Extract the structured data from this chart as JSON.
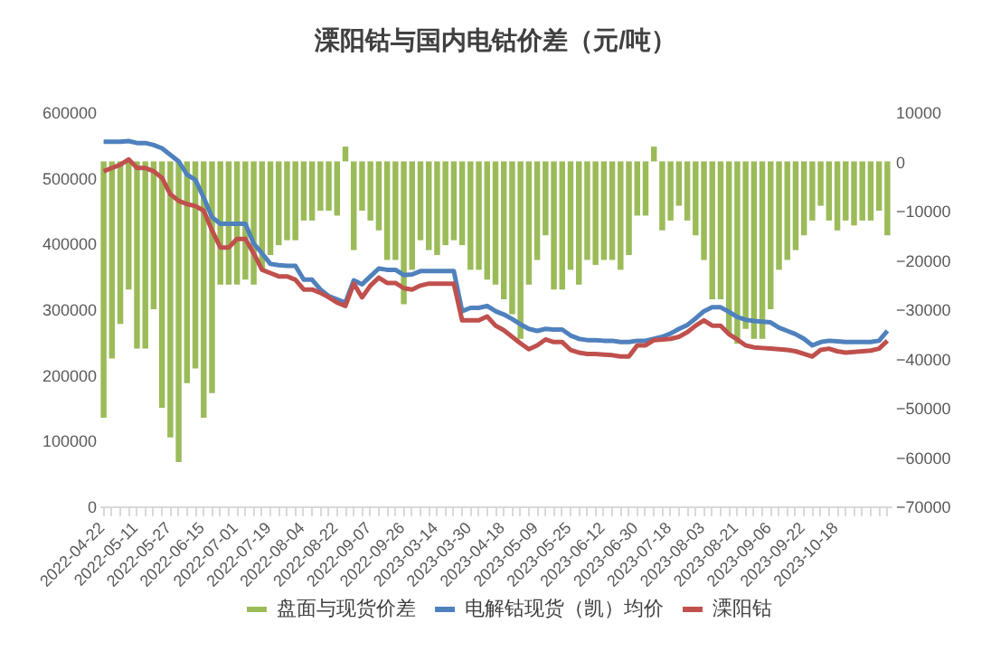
{
  "chart_data": {
    "type": "bar",
    "title": "溧阳钴与国内电钴价差（元/吨）",
    "categories": [
      "2022-04-22",
      null,
      null,
      null,
      "2022-05-11",
      null,
      null,
      null,
      "2022-05-27",
      null,
      null,
      null,
      "2022-06-15",
      null,
      null,
      null,
      "2022-07-01",
      null,
      null,
      null,
      "2022-07-19",
      null,
      null,
      null,
      "2022-08-04",
      null,
      null,
      null,
      "2022-08-22",
      null,
      null,
      null,
      "2022-09-07",
      null,
      null,
      null,
      "2022-09-26",
      null,
      null,
      null,
      "2023-03-14",
      null,
      null,
      null,
      "2023-03-30",
      null,
      null,
      null,
      "2023-04-18",
      null,
      null,
      null,
      "2023-05-09",
      null,
      null,
      null,
      "2023-05-25",
      null,
      null,
      null,
      "2023-06-12",
      null,
      null,
      null,
      "2023-06-30",
      null,
      null,
      null,
      "2023-07-18",
      null,
      null,
      null,
      "2023-08-03",
      null,
      null,
      null,
      "2023-08-21",
      null,
      null,
      null,
      "2023-09-06",
      null,
      null,
      null,
      "2023-09-22",
      null,
      null,
      null,
      "2023-10-18",
      null,
      null,
      null,
      null,
      null,
      null
    ],
    "series": [
      {
        "name": "盘面与现货价差",
        "type": "bar",
        "axis": "y2",
        "color": "#9bbb59",
        "values": [
          -52000,
          -40000,
          -33000,
          -26000,
          -38000,
          -38000,
          -30000,
          -50000,
          -56000,
          -61000,
          -45000,
          -42000,
          -52000,
          -47000,
          -25000,
          -25000,
          -25000,
          -24000,
          -25000,
          -22000,
          -19000,
          -17000,
          -16000,
          -16000,
          -12000,
          -12000,
          -10000,
          -10000,
          -11000,
          3000,
          -18000,
          -10000,
          -12000,
          -14000,
          -20000,
          -20000,
          -29000,
          -22000,
          -16000,
          -18000,
          -19000,
          -17000,
          -16000,
          -17000,
          -22000,
          -22000,
          -24000,
          -25000,
          -28000,
          -31000,
          -36000,
          -25000,
          -20000,
          -15000,
          -26000,
          -26000,
          -22000,
          -25000,
          -20000,
          -21000,
          -20000,
          -20000,
          -22000,
          -19000,
          -11000,
          -11000,
          3000,
          -14000,
          -12000,
          -9000,
          -12000,
          -15000,
          -20000,
          -28000,
          -28000,
          -35000,
          -37000,
          -34000,
          -36000,
          -36000,
          -30000,
          -22000,
          -20000,
          -18000,
          -15000,
          -12000,
          -9000,
          -12000,
          -14000,
          -12000,
          -13000,
          -12000,
          -12000,
          -10000,
          -15000
        ]
      },
      {
        "name": "电解钴现货（凯）均价",
        "type": "line",
        "color": "#4f81bd",
        "values": [
          555000,
          555000,
          555000,
          556000,
          553000,
          553000,
          550000,
          545000,
          535000,
          525000,
          505000,
          497000,
          470000,
          440000,
          430000,
          430000,
          430000,
          430000,
          400000,
          385000,
          369000,
          367000,
          366000,
          366000,
          345000,
          345000,
          330000,
          320000,
          315000,
          310000,
          344000,
          338000,
          350000,
          362000,
          360000,
          360000,
          352000,
          353000,
          358000,
          358000,
          358000,
          358000,
          358000,
          297000,
          302000,
          302000,
          305000,
          297000,
          292000,
          285000,
          277000,
          270000,
          267000,
          270000,
          269000,
          269000,
          260000,
          255000,
          253000,
          253000,
          252000,
          252000,
          250000,
          250000,
          252000,
          252000,
          255000,
          258000,
          263000,
          270000,
          276000,
          286000,
          297000,
          303000,
          303000,
          296000,
          288000,
          284000,
          282000,
          281000,
          280000,
          272000,
          267000,
          262000,
          255000,
          245000,
          250000,
          252000,
          251000,
          250000,
          250000,
          250000,
          250000,
          252000,
          267000
        ]
      },
      {
        "name": "溧阳钴",
        "type": "line",
        "color": "#c0504d",
        "values": [
          510000,
          515000,
          520000,
          528000,
          515000,
          515000,
          510000,
          500000,
          475000,
          465000,
          460000,
          457000,
          450000,
          420000,
          394000,
          394000,
          407000,
          407000,
          385000,
          360000,
          355000,
          350000,
          350000,
          345000,
          330000,
          330000,
          325000,
          318000,
          310000,
          305000,
          339000,
          318000,
          336000,
          348000,
          340000,
          340000,
          332000,
          330000,
          336000,
          339000,
          339000,
          339000,
          339000,
          283000,
          283000,
          283000,
          289000,
          275000,
          268000,
          258000,
          248000,
          239000,
          245000,
          254000,
          250000,
          250000,
          238000,
          234000,
          232000,
          232000,
          231000,
          230000,
          228000,
          228000,
          245000,
          245000,
          253000,
          254000,
          255000,
          258000,
          265000,
          275000,
          283000,
          275000,
          275000,
          262000,
          254000,
          245000,
          242000,
          241000,
          240000,
          239000,
          238000,
          236000,
          232000,
          228000,
          238000,
          240000,
          236000,
          234000,
          235000,
          236000,
          237000,
          240000,
          252000
        ]
      }
    ],
    "ylim": [
      0,
      600000
    ],
    "yticks": [
      0,
      100000,
      200000,
      300000,
      400000,
      500000,
      600000
    ],
    "y2lim": [
      -70000,
      10000
    ],
    "y2ticks": [
      -70000,
      -60000,
      -50000,
      -40000,
      -30000,
      -20000,
      -10000,
      0,
      10000
    ],
    "legend": "bottom",
    "grid": false
  }
}
